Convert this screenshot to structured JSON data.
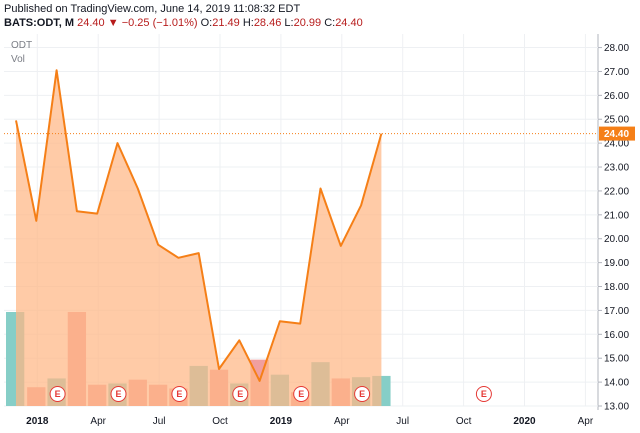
{
  "header": {
    "published": "Published on TradingView.com, June 14, 2019 11:08:32 EDT",
    "symbol": "BATS:ODT, M",
    "last": "24.40",
    "change": "−0.25 (−1.01%)",
    "o_label": "O:",
    "o_value": "21.49",
    "h_label": "H:",
    "h_value": "28.46",
    "l_label": "L:",
    "l_value": "20.99",
    "c_label": "C:",
    "c_value": "24.40"
  },
  "labels": {
    "ticker": "ODT",
    "volume": "Vol",
    "earnings_marker": "E"
  },
  "colors": {
    "line": "#f57f17",
    "fill": "#ffb785",
    "price_badge": "#f57f17",
    "vol_up": "#80cbc4",
    "vol_down": "#ef9a9a",
    "earnings": "#e53935",
    "grid": "#eef0f3"
  },
  "chart_data": {
    "type": "area",
    "interval": "monthly",
    "x": [
      "2017-12",
      "2018-01",
      "2018-02",
      "2018-03",
      "2018-04",
      "2018-05",
      "2018-06",
      "2018-07",
      "2018-08",
      "2018-09",
      "2018-10",
      "2018-11",
      "2018-12",
      "2019-01",
      "2019-02",
      "2019-03",
      "2019-04",
      "2019-05",
      "2019-06"
    ],
    "series": [
      {
        "name": "ODT",
        "values": [
          24.95,
          20.75,
          27.05,
          21.15,
          21.05,
          24.0,
          22.1,
          19.75,
          19.2,
          19.4,
          14.55,
          15.75,
          14.05,
          16.55,
          16.45,
          22.1,
          19.7,
          21.4,
          24.4
        ]
      }
    ],
    "volume": {
      "name": "Vol",
      "values": [
        7.5,
        1.5,
        2.2,
        7.5,
        1.7,
        1.8,
        2.1,
        1.7,
        1.4,
        3.2,
        2.9,
        1.8,
        3.7,
        2.5,
        1.1,
        3.5,
        2.2,
        2.3,
        2.4
      ],
      "direction": [
        "up",
        "down",
        "up",
        "down",
        "down",
        "up",
        "down",
        "down",
        "down",
        "up",
        "down",
        "up",
        "down",
        "up",
        "down",
        "up",
        "down",
        "up",
        "up"
      ]
    },
    "last_price": 24.4,
    "ylim": [
      13.0,
      28.4
    ],
    "y_ticks": [
      "28.00",
      "27.00",
      "26.00",
      "25.00",
      "24.00",
      "23.00",
      "22.00",
      "21.00",
      "20.00",
      "19.00",
      "18.00",
      "17.00",
      "16.00",
      "15.00",
      "14.00",
      "13.00"
    ],
    "x_tick_labels": [
      {
        "label": "2018",
        "month": 1,
        "bold": true
      },
      {
        "label": "Apr",
        "month": 4,
        "bold": false
      },
      {
        "label": "Jul",
        "month": 7,
        "bold": false
      },
      {
        "label": "Oct",
        "month": 10,
        "bold": false
      },
      {
        "label": "2019",
        "month": 13,
        "bold": true
      },
      {
        "label": "Apr",
        "month": 16,
        "bold": false
      },
      {
        "label": "Jul",
        "month": 19,
        "bold": false
      },
      {
        "label": "Oct",
        "month": 22,
        "bold": false
      },
      {
        "label": "2020",
        "month": 25,
        "bold": true
      },
      {
        "label": "Apr",
        "month": 28,
        "bold": false
      }
    ],
    "earnings_months": [
      2,
      5,
      8,
      11,
      14,
      17,
      23
    ]
  }
}
